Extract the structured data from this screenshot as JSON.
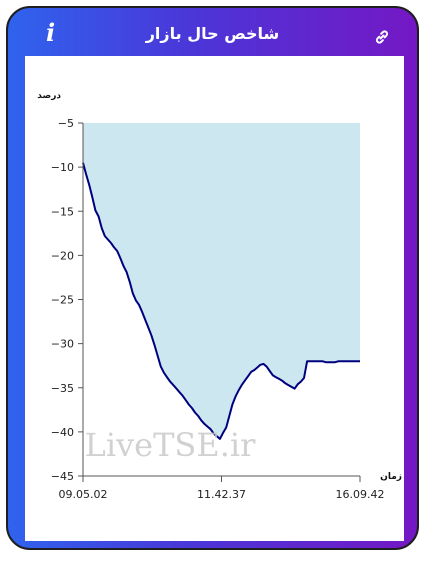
{
  "header": {
    "title": "شاخص حال بازار",
    "info_icon": "info-icon",
    "link_icon": "link-icon"
  },
  "colors": {
    "gradient_start": "#2f63ee",
    "gradient_end": "#7418c4",
    "line": "#00007f",
    "area": "#cce7f0"
  },
  "watermark": "LiveTSE.ir",
  "chart_data": {
    "type": "area",
    "ylabel": "درصد",
    "xlabel": "زمان",
    "ylim": [
      -45,
      -5
    ],
    "yticks": [
      -5,
      -10,
      -15,
      -20,
      -25,
      -30,
      -35,
      -40,
      -45
    ],
    "xtick_labels": [
      "09.05.02",
      "11.42.37",
      "16.09.42"
    ],
    "grid": false,
    "series": [
      {
        "values": [
          -9.5,
          -10.8,
          -12.0,
          -13.4,
          -14.9,
          -15.6,
          -16.9,
          -17.8,
          -18.2,
          -18.6,
          -19.1,
          -19.5,
          -20.3,
          -21.2,
          -21.9,
          -23.0,
          -24.3,
          -25.1,
          -25.6,
          -26.4,
          -27.3,
          -28.2,
          -29.1,
          -30.2,
          -31.4,
          -32.6,
          -33.3,
          -33.8,
          -34.3,
          -34.7,
          -35.1,
          -35.5,
          -35.9,
          -36.4,
          -36.9,
          -37.3,
          -37.8,
          -38.2,
          -38.7,
          -39.1,
          -39.4,
          -39.7,
          -40.2,
          -40.5,
          -40.8,
          -40.1,
          -39.5,
          -38.2,
          -36.9,
          -36.0,
          -35.3,
          -34.7,
          -34.2,
          -33.7,
          -33.2,
          -33.0,
          -32.7,
          -32.4,
          -32.3,
          -32.6,
          -33.1,
          -33.6,
          -33.8,
          -34.0,
          -34.2,
          -34.5,
          -34.7,
          -34.9,
          -35.1,
          -34.6,
          -34.3,
          -33.9,
          -32.0,
          -32.0,
          -32.0,
          -32.0,
          -32.0,
          -32.0,
          -32.1,
          -32.1,
          -32.1,
          -32.1,
          -32.0,
          -32.0,
          -32.0,
          -32.0,
          -32.0,
          -32.0,
          -32.0,
          -32.0
        ]
      }
    ]
  }
}
